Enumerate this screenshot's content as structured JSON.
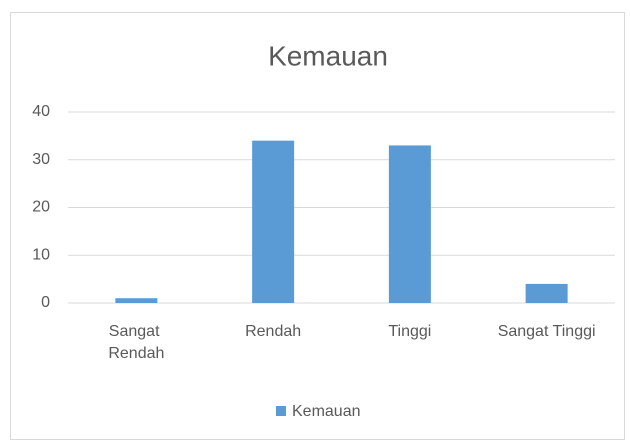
{
  "chart_data": {
    "type": "bar",
    "title": "Kemauan",
    "categories": [
      "Sangat Rendah",
      "Rendah",
      "Tinggi",
      "Sangat Tinggi"
    ],
    "series": [
      {
        "name": "Kemauan",
        "color": "#5b9bd5",
        "values": [
          1,
          34,
          33,
          4
        ]
      }
    ],
    "ylim": [
      0,
      40
    ],
    "yticks": [
      0,
      10,
      20,
      30,
      40
    ],
    "grid": true,
    "legend": "bottom"
  }
}
